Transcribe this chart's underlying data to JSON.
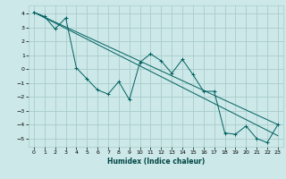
{
  "xlabel": "Humidex (Indice chaleur)",
  "bg_color": "#cce8e8",
  "grid_color": "#aacccc",
  "line_color": "#006060",
  "xlim": [
    -0.5,
    23.5
  ],
  "ylim": [
    -5.6,
    4.6
  ],
  "yticks": [
    -5,
    -4,
    -3,
    -2,
    -1,
    0,
    1,
    2,
    3,
    4
  ],
  "xticks": [
    0,
    1,
    2,
    3,
    4,
    5,
    6,
    7,
    8,
    9,
    10,
    11,
    12,
    13,
    14,
    15,
    16,
    17,
    18,
    19,
    20,
    21,
    22,
    23
  ],
  "line1_x": [
    0,
    1,
    2,
    3,
    4,
    5,
    6,
    7,
    8,
    9,
    10,
    11,
    12,
    13,
    14,
    15,
    16,
    17,
    18,
    19,
    20,
    21,
    22,
    23
  ],
  "line1_y": [
    4.1,
    3.8,
    2.9,
    3.7,
    0.1,
    -0.7,
    -1.5,
    -1.8,
    -0.9,
    -2.2,
    0.5,
    1.1,
    0.6,
    -0.3,
    0.7,
    -0.4,
    -1.6,
    -1.6,
    -4.6,
    -4.7,
    -4.1,
    -5.0,
    -5.3,
    -4.0
  ],
  "line2_x": [
    0,
    23
  ],
  "line2_y": [
    4.1,
    -4.0
  ],
  "line3_x": [
    0,
    23
  ],
  "line3_y": [
    4.1,
    -4.8
  ]
}
